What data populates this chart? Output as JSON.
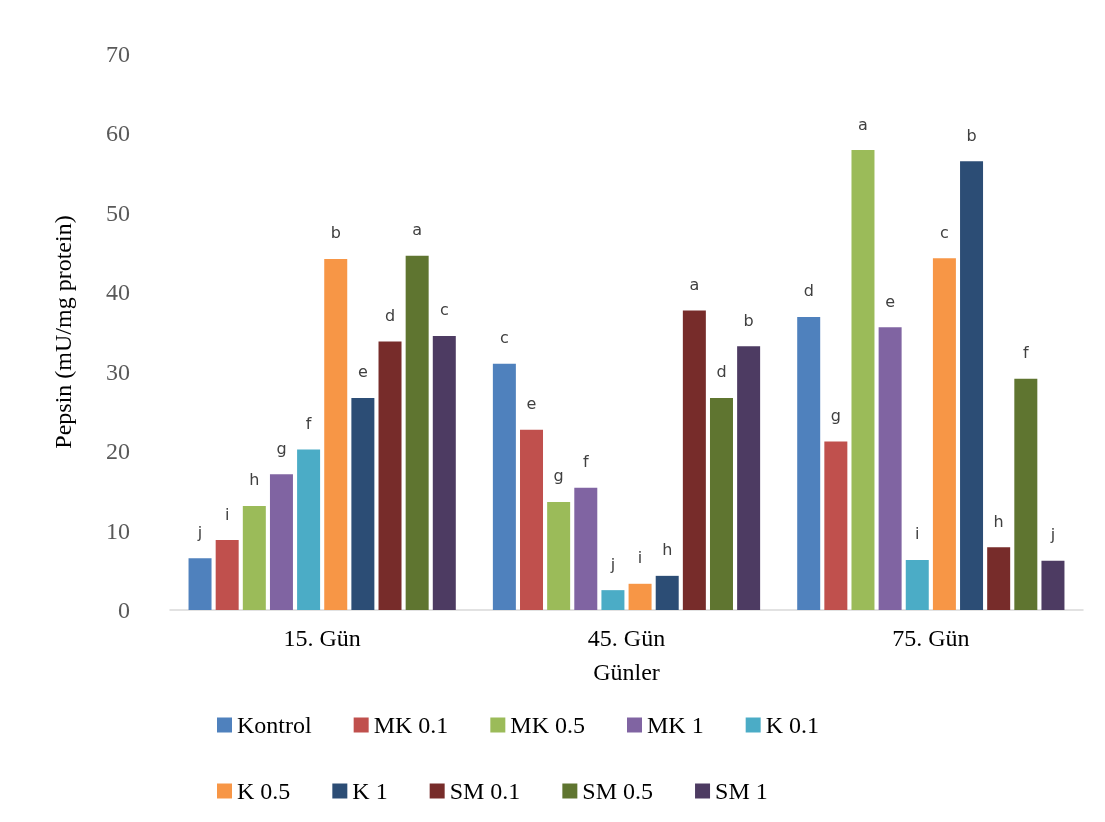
{
  "chart_data": {
    "type": "bar",
    "xlabel": "Günler",
    "ylabel": "Pepsin (mU/mg protein)",
    "categories": [
      "15. Gün",
      "45. Gün",
      "75. Gün"
    ],
    "ylim": [
      0,
      70
    ],
    "yticks": [
      0,
      10,
      20,
      30,
      40,
      50,
      60,
      70
    ],
    "grid": false,
    "legend": "bottom",
    "series": [
      {
        "name": "Kontrol",
        "color": "#4f81bd",
        "values": [
          6.5,
          31.0,
          36.9
        ],
        "value_labels": [
          "j",
          "c",
          "d"
        ]
      },
      {
        "name": "MK 0.1",
        "color": "#c0504d",
        "values": [
          8.8,
          22.7,
          21.2
        ],
        "value_labels": [
          "i",
          "e",
          "g"
        ]
      },
      {
        "name": "MK 0.5",
        "color": "#9bbb59",
        "values": [
          13.1,
          13.6,
          57.9
        ],
        "value_labels": [
          "h",
          "g",
          "a"
        ]
      },
      {
        "name": "MK 1",
        "color": "#8064a2",
        "values": [
          17.1,
          15.4,
          35.6
        ],
        "value_labels": [
          "g",
          "f",
          "e"
        ]
      },
      {
        "name": "K 0.1",
        "color": "#4bacc6",
        "values": [
          20.2,
          2.5,
          6.3
        ],
        "value_labels": [
          "f",
          "j",
          "i"
        ]
      },
      {
        "name": "K 0.5",
        "color": "#f79646",
        "values": [
          44.2,
          3.3,
          44.3
        ],
        "value_labels": [
          "b",
          "i",
          "c"
        ]
      },
      {
        "name": "K 1",
        "color": "#2c4d75",
        "values": [
          26.7,
          4.3,
          56.5
        ],
        "value_labels": [
          "e",
          "h",
          "b"
        ]
      },
      {
        "name": "SM 0.1",
        "color": "#772c2a",
        "values": [
          33.8,
          37.7,
          7.9
        ],
        "value_labels": [
          "d",
          "a",
          "h"
        ]
      },
      {
        "name": "SM 0.5",
        "color": "#5f7530",
        "values": [
          44.6,
          26.7,
          29.1
        ],
        "value_labels": [
          "a",
          "d",
          "f"
        ]
      },
      {
        "name": "SM 1",
        "color": "#4d3b62",
        "values": [
          34.5,
          33.2,
          6.2
        ],
        "value_labels": [
          "c",
          "b",
          "j"
        ]
      }
    ]
  }
}
